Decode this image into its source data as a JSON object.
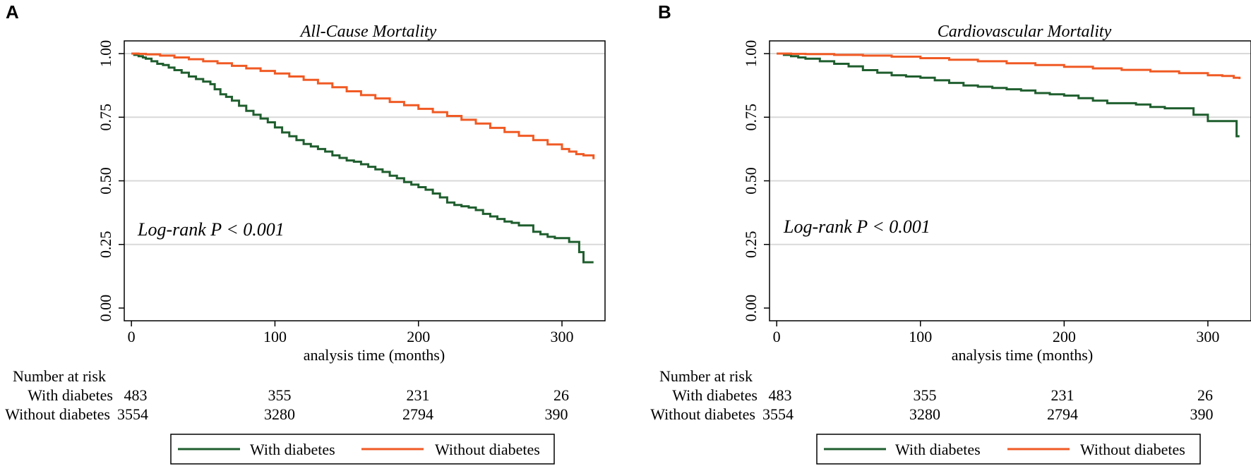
{
  "colors": {
    "with": "#1f5e2e",
    "without": "#f05a24",
    "grid": "#d9d9d9",
    "axis": "#000000"
  },
  "risk_table": {
    "header": "Number at risk",
    "with_label": "With diabetes",
    "without_label": "Without diabetes",
    "times": [
      0,
      100,
      200,
      300
    ],
    "with_values": [
      "483",
      "355",
      "231",
      "26"
    ],
    "without_values": [
      "3554",
      "3280",
      "2794",
      "390"
    ]
  },
  "legend": {
    "with_label": "With diabetes",
    "without_label": "Without diabetes"
  },
  "chart_data": [
    {
      "type": "line",
      "panel_label": "A",
      "title": "All-Cause Mortality",
      "xlabel": "analysis time (months)",
      "ylabel": "",
      "xlim": [
        -5,
        330
      ],
      "ylim": [
        -0.05,
        1.05
      ],
      "xticks": [
        0,
        100,
        200,
        300
      ],
      "xtick_labels": [
        "0",
        "100",
        "200",
        "300"
      ],
      "yticks": [
        0,
        0.25,
        0.5,
        0.75,
        1.0
      ],
      "ytick_labels": [
        "0.00",
        "0.25",
        "0.50",
        "0.75",
        "1.00"
      ],
      "annotation": "Log-rank P < 0.001",
      "series": [
        {
          "name": "With diabetes",
          "x": [
            0,
            2,
            5,
            8,
            10,
            14,
            18,
            22,
            26,
            30,
            35,
            40,
            45,
            50,
            55,
            58,
            62,
            66,
            70,
            75,
            80,
            85,
            90,
            95,
            100,
            105,
            110,
            115,
            120,
            125,
            130,
            135,
            140,
            145,
            150,
            155,
            160,
            165,
            170,
            175,
            180,
            185,
            190,
            195,
            200,
            205,
            210,
            215,
            220,
            225,
            230,
            235,
            240,
            245,
            250,
            255,
            260,
            265,
            270,
            275,
            280,
            285,
            290,
            295,
            300,
            305,
            310,
            312,
            315,
            320,
            322
          ],
          "y": [
            1.0,
            0.995,
            0.99,
            0.985,
            0.98,
            0.97,
            0.96,
            0.955,
            0.945,
            0.935,
            0.925,
            0.91,
            0.9,
            0.89,
            0.88,
            0.86,
            0.84,
            0.83,
            0.815,
            0.795,
            0.775,
            0.76,
            0.745,
            0.73,
            0.71,
            0.69,
            0.675,
            0.66,
            0.645,
            0.635,
            0.625,
            0.615,
            0.6,
            0.59,
            0.58,
            0.575,
            0.565,
            0.555,
            0.545,
            0.535,
            0.52,
            0.51,
            0.495,
            0.485,
            0.475,
            0.465,
            0.45,
            0.435,
            0.415,
            0.405,
            0.4,
            0.395,
            0.385,
            0.37,
            0.36,
            0.35,
            0.34,
            0.335,
            0.325,
            0.325,
            0.3,
            0.29,
            0.28,
            0.275,
            0.275,
            0.26,
            0.26,
            0.22,
            0.18,
            0.18,
            0.18
          ]
        },
        {
          "name": "Without diabetes",
          "x": [
            0,
            5,
            10,
            20,
            30,
            40,
            50,
            60,
            70,
            80,
            90,
            100,
            110,
            120,
            130,
            140,
            150,
            160,
            170,
            180,
            190,
            200,
            210,
            220,
            230,
            240,
            250,
            260,
            270,
            280,
            290,
            300,
            305,
            310,
            315,
            320,
            322
          ],
          "y": [
            1.0,
            0.999,
            0.997,
            0.992,
            0.985,
            0.978,
            0.97,
            0.962,
            0.952,
            0.942,
            0.932,
            0.922,
            0.91,
            0.897,
            0.883,
            0.868,
            0.852,
            0.837,
            0.824,
            0.81,
            0.797,
            0.783,
            0.77,
            0.755,
            0.74,
            0.725,
            0.708,
            0.692,
            0.677,
            0.66,
            0.643,
            0.625,
            0.615,
            0.605,
            0.6,
            0.6,
            0.585
          ]
        }
      ]
    },
    {
      "type": "line",
      "panel_label": "B",
      "title": "Cardiovascular Mortality",
      "xlabel": "analysis time (months)",
      "ylabel": "",
      "xlim": [
        -5,
        330
      ],
      "ylim": [
        -0.05,
        1.05
      ],
      "xticks": [
        0,
        100,
        200,
        300
      ],
      "xtick_labels": [
        "0",
        "100",
        "200",
        "300"
      ],
      "yticks": [
        0,
        0.25,
        0.5,
        0.75,
        1.0
      ],
      "ytick_labels": [
        "0.00",
        "0.25",
        "0.50",
        "0.75",
        "1.00"
      ],
      "annotation": "Log-rank P < 0.001",
      "series": [
        {
          "name": "With diabetes",
          "x": [
            0,
            5,
            10,
            15,
            20,
            30,
            40,
            50,
            60,
            70,
            80,
            90,
            100,
            110,
            120,
            130,
            140,
            150,
            160,
            170,
            180,
            190,
            200,
            210,
            220,
            230,
            240,
            250,
            260,
            270,
            280,
            290,
            300,
            310,
            320,
            322
          ],
          "y": [
            1.0,
            0.995,
            0.99,
            0.985,
            0.98,
            0.97,
            0.96,
            0.95,
            0.935,
            0.925,
            0.915,
            0.91,
            0.905,
            0.895,
            0.885,
            0.875,
            0.87,
            0.865,
            0.86,
            0.855,
            0.845,
            0.84,
            0.835,
            0.825,
            0.815,
            0.805,
            0.805,
            0.8,
            0.79,
            0.785,
            0.785,
            0.76,
            0.735,
            0.735,
            0.675,
            0.675
          ]
        },
        {
          "name": "Without diabetes",
          "x": [
            0,
            10,
            20,
            40,
            60,
            80,
            100,
            120,
            140,
            160,
            180,
            200,
            220,
            240,
            260,
            280,
            300,
            310,
            318,
            322
          ],
          "y": [
            1.0,
            0.999,
            0.998,
            0.995,
            0.992,
            0.988,
            0.982,
            0.976,
            0.97,
            0.962,
            0.955,
            0.948,
            0.942,
            0.936,
            0.93,
            0.923,
            0.915,
            0.912,
            0.905,
            0.9
          ]
        }
      ]
    }
  ]
}
